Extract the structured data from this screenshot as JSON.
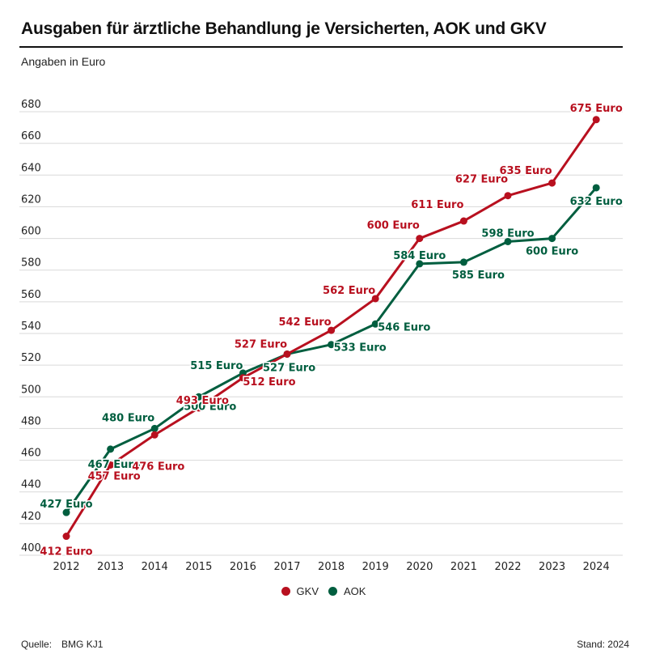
{
  "header": {
    "title": "Ausgaben für ärztliche Behandlung je Versicherten, AOK und GKV",
    "subtitle": "Angaben in Euro"
  },
  "colors": {
    "gkv": "#b8101f",
    "aok": "#005e3f",
    "grid": "#d9d9d9"
  },
  "legend": {
    "items": [
      {
        "label": "GKV",
        "color": "#b8101f"
      },
      {
        "label": "AOK",
        "color": "#005e3f"
      }
    ]
  },
  "footer": {
    "source_label": "Quelle:",
    "source_value": "BMG KJ1",
    "stand": "Stand: 2024"
  },
  "chart_data": {
    "type": "line",
    "title": "Ausgaben für ärztliche Behandlung je Versicherten, AOK und GKV",
    "subtitle": "Angaben in Euro",
    "xlabel": "",
    "ylabel": "Euro",
    "x": [
      "2012",
      "2013",
      "2014",
      "2015",
      "2016",
      "2017",
      "2018",
      "2019",
      "2020",
      "2021",
      "2022",
      "2023",
      "2024"
    ],
    "ylim": [
      400,
      680
    ],
    "yticks": [
      400,
      420,
      440,
      460,
      480,
      500,
      520,
      540,
      560,
      580,
      600,
      620,
      640,
      660,
      680
    ],
    "grid": true,
    "legend_position": "bottom-center",
    "label_suffix": " Euro",
    "series": [
      {
        "name": "GKV",
        "color": "#b8101f",
        "values": [
          412,
          457,
          476,
          493,
          512,
          527,
          542,
          562,
          600,
          611,
          627,
          635,
          675
        ]
      },
      {
        "name": "AOK",
        "color": "#005e3f",
        "values": [
          427,
          467,
          480,
          500,
          515,
          527,
          533,
          546,
          584,
          585,
          598,
          600,
          632
        ]
      }
    ]
  }
}
